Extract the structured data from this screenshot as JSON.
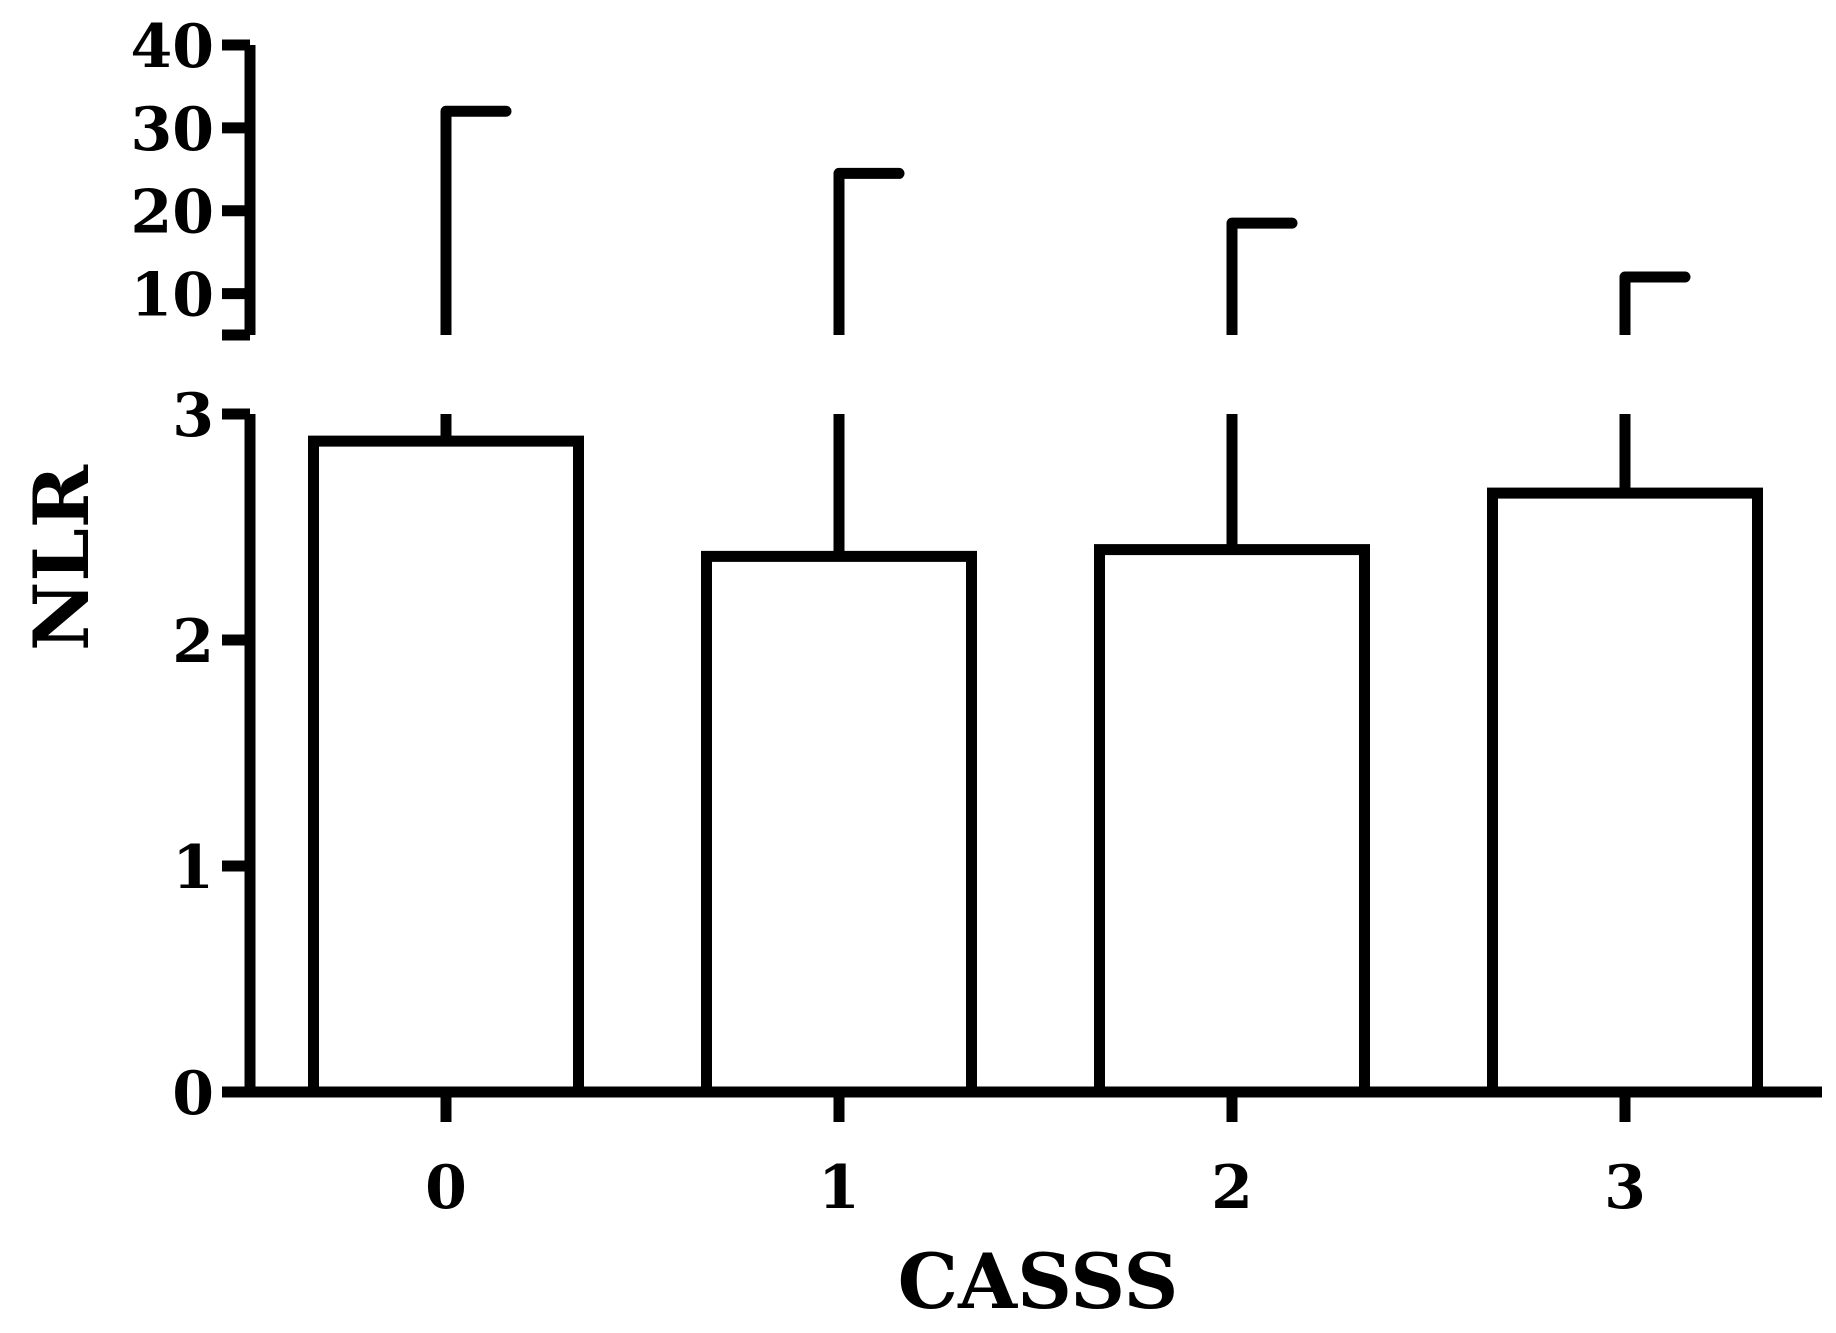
{
  "chart_data": {
    "type": "bar",
    "title": "",
    "xlabel": "CASSS",
    "ylabel": "NLR",
    "categories": [
      "0",
      "1",
      "2",
      "3"
    ],
    "series": [
      {
        "values": [
          2.88,
          2.37,
          2.4,
          2.65
        ],
        "error_upper": [
          32,
          24.5,
          18.5,
          12
        ]
      }
    ],
    "y_axis_broken": true,
    "y_segments": [
      {
        "range": [
          0,
          3
        ],
        "ticks": [
          0,
          1,
          2,
          3
        ]
      },
      {
        "range": [
          5,
          40
        ],
        "ticks": [
          10,
          20,
          30,
          40
        ]
      }
    ],
    "grid": false,
    "legend": "none",
    "colors": {
      "bar_fill": "#ffffff",
      "stroke": "#000000"
    }
  }
}
